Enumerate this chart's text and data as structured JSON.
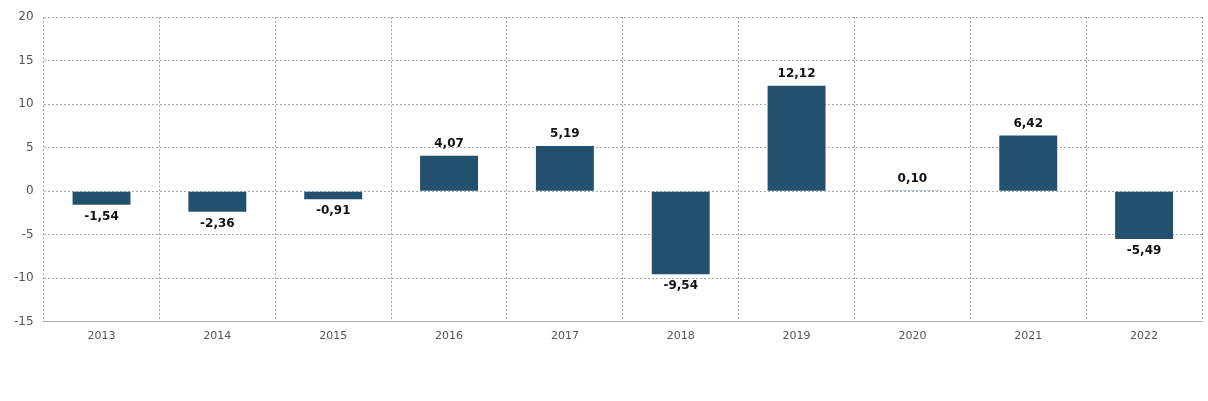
{
  "chart_data": {
    "type": "bar",
    "categories": [
      "2013",
      "2014",
      "2015",
      "2016",
      "2017",
      "2018",
      "2019",
      "2020",
      "2021",
      "2022"
    ],
    "series": [
      {
        "color": "#22506e",
        "values": [
          -1.54,
          -2.36,
          -0.91,
          4.07,
          5.19,
          -9.54,
          12.12,
          0.1,
          6.42,
          -5.49
        ],
        "value_labels": [
          "-1,54",
          "-2,36",
          "-0,91",
          "4,07",
          "5,19",
          "-9,54",
          "12,12",
          "0,10",
          "6,42",
          "-5,49"
        ]
      }
    ],
    "ylim": [
      -15,
      20
    ],
    "yticks": [
      -15,
      -10,
      -5,
      0,
      5,
      10,
      15,
      20
    ],
    "grid": true,
    "legend": false
  }
}
